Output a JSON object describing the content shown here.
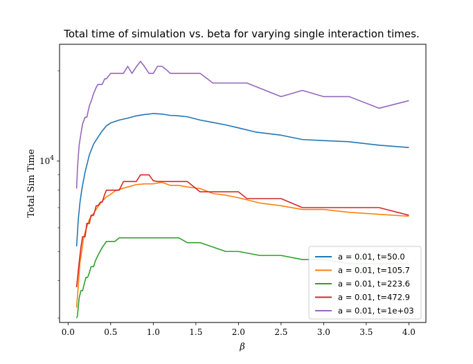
{
  "chart_data": {
    "type": "line",
    "title": "Total time of simulation vs. beta for varying single interaction times.",
    "xlabel": "β",
    "ylabel": "Total Sim Time",
    "xlim": [
      -0.1,
      4.2
    ],
    "ylim": [
      2900,
      24500
    ],
    "yscale": "log",
    "x_ticks": [
      0.0,
      0.5,
      1.0,
      1.5,
      2.0,
      2.5,
      3.0,
      3.5,
      4.0
    ],
    "x_tick_labels": [
      "0.0",
      "0.5",
      "1.0",
      "1.5",
      "2.0",
      "2.5",
      "3.0",
      "3.5",
      "4.0"
    ],
    "y_major_ticks": [
      10000
    ],
    "y_tick_label_base": "10",
    "y_tick_label_exp": "4",
    "y_minor_ticks": [
      3000,
      4000,
      5000,
      6000,
      7000,
      8000,
      9000,
      20000
    ],
    "grid": false,
    "legend_position": "lower-right",
    "series": [
      {
        "name": "a = 0.01, t=50.0",
        "color": "#1f77b4",
        "x": [
          0.1,
          0.12,
          0.14,
          0.16,
          0.18,
          0.2,
          0.25,
          0.3,
          0.35,
          0.4,
          0.45,
          0.5,
          0.6,
          0.7,
          0.8,
          0.9,
          1.0,
          1.1,
          1.2,
          1.3,
          1.4,
          1.55,
          1.7,
          1.85,
          2.0,
          2.2,
          2.5,
          2.75,
          3.0,
          3.3,
          3.65,
          4.0
        ],
        "y": [
          5200,
          6400,
          7300,
          8000,
          8600,
          9200,
          10500,
          11400,
          12000,
          12600,
          13100,
          13400,
          13700,
          13900,
          14150,
          14300,
          14400,
          14350,
          14200,
          14150,
          14050,
          13700,
          13450,
          13200,
          12900,
          12500,
          12200,
          11800,
          11700,
          11600,
          11300,
          11100
        ]
      },
      {
        "name": "a = 0.01, t=105.7",
        "color": "#ff7f0e",
        "x": [
          0.1,
          0.12,
          0.14,
          0.16,
          0.18,
          0.2,
          0.25,
          0.3,
          0.35,
          0.4,
          0.45,
          0.5,
          0.55,
          0.6,
          0.7,
          0.8,
          0.9,
          1.0,
          1.1,
          1.2,
          1.3,
          1.4,
          1.55,
          1.7,
          1.85,
          2.0,
          2.25,
          2.5,
          2.75,
          3.0,
          3.3,
          3.65,
          4.0
        ],
        "y": [
          3250,
          3850,
          4600,
          5000,
          5500,
          5800,
          6400,
          6700,
          7050,
          7350,
          7600,
          7750,
          7950,
          8050,
          8200,
          8350,
          8400,
          8400,
          8500,
          8300,
          8300,
          8200,
          8100,
          7800,
          7700,
          7550,
          7250,
          7100,
          6900,
          6900,
          6750,
          6650,
          6550
        ]
      },
      {
        "name": "a = 0.01, t=223.6",
        "color": "#2ca02c",
        "x": [
          0.1,
          0.11,
          0.13,
          0.15,
          0.17,
          0.19,
          0.21,
          0.23,
          0.25,
          0.27,
          0.3,
          0.32,
          0.35,
          0.4,
          0.45,
          0.5,
          0.55,
          0.6,
          0.7,
          0.8,
          0.9,
          1.0,
          1.1,
          1.2,
          1.3,
          1.4,
          1.55,
          1.85,
          2.0,
          2.25,
          2.5,
          2.75,
          3.0,
          3.3,
          3.65,
          4.0
        ],
        "y": [
          3000,
          3050,
          3500,
          3700,
          3700,
          3900,
          4100,
          4100,
          4250,
          4450,
          4450,
          4650,
          4850,
          5150,
          5400,
          5400,
          5400,
          5550,
          5550,
          5550,
          5550,
          5550,
          5550,
          5550,
          5550,
          5350,
          5350,
          5000,
          5000,
          4850,
          4850,
          4700,
          4700,
          4550,
          4550,
          4550
        ]
      },
      {
        "name": "a = 0.01, t=472.9",
        "color": "#d62728",
        "x": [
          0.1,
          0.11,
          0.13,
          0.15,
          0.17,
          0.2,
          0.22,
          0.25,
          0.27,
          0.3,
          0.33,
          0.35,
          0.38,
          0.4,
          0.43,
          0.45,
          0.5,
          0.55,
          0.6,
          0.65,
          0.7,
          0.75,
          0.8,
          0.85,
          0.9,
          0.95,
          1.0,
          1.05,
          1.1,
          1.2,
          1.3,
          1.4,
          1.55,
          1.7,
          1.85,
          2.0,
          2.1,
          2.25,
          2.5,
          2.75,
          3.0,
          3.3,
          3.65,
          4.0
        ],
        "y": [
          3800,
          4050,
          4600,
          5150,
          5600,
          5600,
          6200,
          6200,
          6600,
          6600,
          7100,
          7100,
          7300,
          7300,
          7750,
          8000,
          8000,
          8000,
          8000,
          8550,
          8550,
          8550,
          8550,
          9000,
          9000,
          9000,
          8600,
          8550,
          8550,
          8550,
          8550,
          8550,
          7900,
          7900,
          7900,
          7900,
          7500,
          7500,
          7500,
          7000,
          7000,
          7000,
          7000,
          6600
        ]
      },
      {
        "name": "a = 0.01, t=1e+03",
        "color": "#9467bd",
        "x": [
          0.1,
          0.11,
          0.12,
          0.13,
          0.15,
          0.17,
          0.2,
          0.22,
          0.25,
          0.27,
          0.3,
          0.33,
          0.35,
          0.4,
          0.43,
          0.45,
          0.5,
          0.55,
          0.6,
          0.65,
          0.7,
          0.75,
          0.8,
          0.85,
          0.9,
          0.95,
          1.0,
          1.05,
          1.1,
          1.15,
          1.2,
          1.3,
          1.4,
          1.55,
          1.7,
          1.85,
          2.0,
          2.1,
          2.25,
          2.5,
          2.75,
          3.0,
          3.3,
          3.65,
          4.0
        ],
        "y": [
          8100,
          9400,
          10400,
          11300,
          12300,
          13300,
          14000,
          14000,
          15300,
          15800,
          16800,
          17600,
          18000,
          18000,
          18800,
          18800,
          19600,
          19600,
          19600,
          19600,
          20700,
          19600,
          20600,
          21500,
          20600,
          19600,
          19600,
          20700,
          20700,
          20200,
          19600,
          19600,
          19600,
          19600,
          18200,
          18200,
          18200,
          18200,
          17500,
          16400,
          17200,
          16400,
          16400,
          15000,
          15900
        ]
      }
    ]
  }
}
